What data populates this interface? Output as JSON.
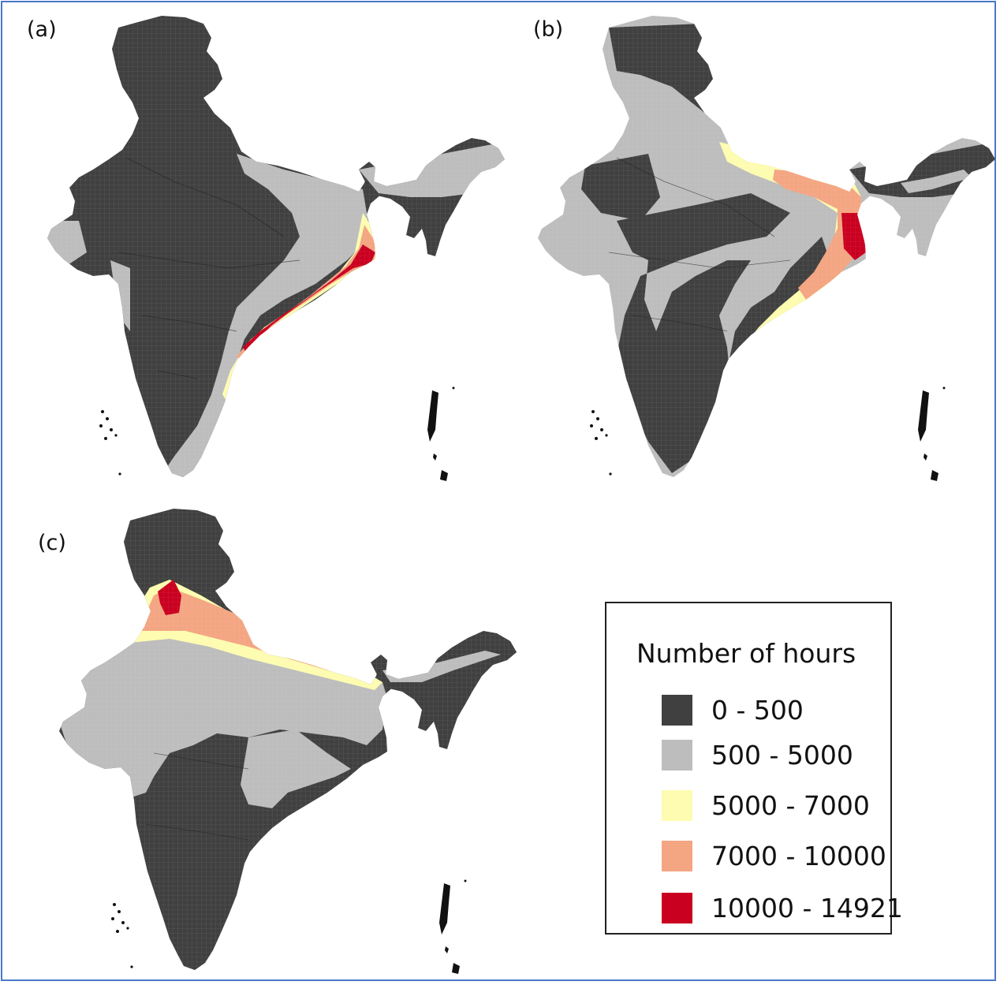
{
  "panels": [
    {
      "label": "(a)"
    },
    {
      "label": "(b)"
    },
    {
      "label": "(c)"
    }
  ],
  "legend": {
    "title": "Number of hours",
    "items": [
      {
        "label": "0 - 500",
        "color": "#404040"
      },
      {
        "label": "500 - 5000",
        "color": "#bdbdbd"
      },
      {
        "label": "5000 - 7000",
        "color": "#fdfcb0"
      },
      {
        "label": "7000 - 10000",
        "color": "#f4a582"
      },
      {
        "label": "10000 - 14921",
        "color": "#ca0020"
      }
    ]
  },
  "colors": {
    "frame": "#4a78c8",
    "dark": "#404040",
    "grey": "#bdbdbd",
    "yellow": "#fdfcb0",
    "orange": "#f4a582",
    "red": "#ca0020"
  }
}
